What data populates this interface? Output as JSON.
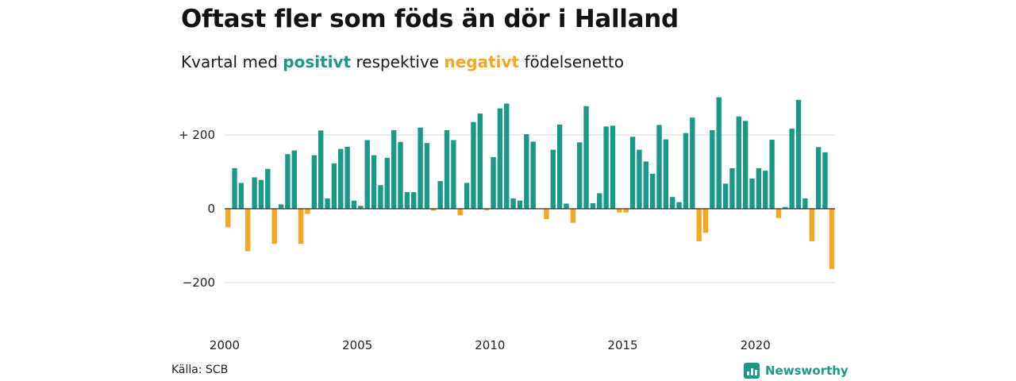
{
  "header": {
    "title": "Oftast fler som föds än dör i Halland",
    "subtitle_prefix": "Kvartal med ",
    "subtitle_positive": "positivt",
    "subtitle_middle": " respektive ",
    "subtitle_negative": "negativt",
    "subtitle_suffix": " födelsenetto"
  },
  "footer": {
    "source": "Källa: SCB",
    "brand": "Newsworthy"
  },
  "colors": {
    "positive": "#1a9988",
    "negative": "#f5a623",
    "grid": "#dddddd",
    "zero_line": "#333333"
  },
  "chart_data": {
    "type": "bar",
    "ylim": [
      -320,
      320
    ],
    "y_ticks": [
      -200,
      0,
      200
    ],
    "y_tick_labels": [
      "−200",
      "0",
      "+ 200"
    ],
    "x_ticks": [
      2000,
      2005,
      2010,
      2015,
      2020
    ],
    "x_tick_labels": [
      "2000",
      "2005",
      "2010",
      "2015",
      "2020"
    ],
    "grid": true,
    "x_start": 2000,
    "x_step": 0.25,
    "values": [
      -50,
      110,
      70,
      -115,
      85,
      78,
      108,
      -95,
      12,
      148,
      158,
      -95,
      -14,
      145,
      212,
      28,
      123,
      162,
      168,
      22,
      8,
      186,
      145,
      64,
      138,
      213,
      181,
      45,
      45,
      220,
      178,
      -5,
      75,
      213,
      186,
      -18,
      70,
      235,
      258,
      -4,
      140,
      272,
      285,
      28,
      22,
      202,
      182,
      0,
      -28,
      160,
      228,
      14,
      -38,
      180,
      278,
      15,
      42,
      223,
      225,
      -10,
      -10,
      195,
      160,
      128,
      95,
      227,
      188,
      32,
      18,
      205,
      247,
      -88,
      -65,
      213,
      302,
      68,
      110,
      250,
      238,
      82,
      110,
      103,
      187,
      -25,
      5,
      217,
      295,
      28,
      -88,
      167,
      153,
      -163
    ]
  }
}
